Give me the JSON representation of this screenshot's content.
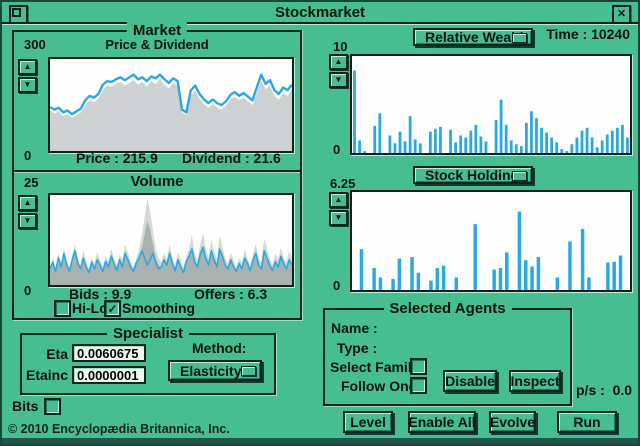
{
  "window": {
    "title": "Stockmarket"
  },
  "icons": {
    "up_arrow": "▲",
    "down_arrow": "▼",
    "close": "✕",
    "check": "✓"
  },
  "header": {
    "time_label": "Time : 10240"
  },
  "market": {
    "legend": "Market",
    "subtitle": "Price & Dividend",
    "y_max": "300",
    "y_min": "0",
    "price_label": "Price : 215.9",
    "dividend_label": "Dividend : 21.6"
  },
  "volume": {
    "title": "Volume",
    "y_max": "25",
    "y_min": "0",
    "bids_label": "Bids : 9.9",
    "offers_label": "Offers : 6.3",
    "hilo_label": "Hi-Lo",
    "smoothing_label": "Smoothing"
  },
  "specialist": {
    "legend": "Specialist",
    "eta_label": "Eta",
    "eta_value": "0.0060675",
    "etainc_label": "Etainc",
    "etainc_value": "0.0000001",
    "method_label": "Method:",
    "method_value": "Elasticity"
  },
  "bits_label": "Bits",
  "copyright": "© 2010 Encyclopædia Britannica, Inc.",
  "wealth": {
    "button_label": "Relative Wealth",
    "y_max": "10",
    "y_min": "0"
  },
  "holding": {
    "button_label": "Stock Holding",
    "y_max": "6.25",
    "y_min": "0"
  },
  "agents": {
    "legend": "Selected Agents",
    "name_label": "Name :",
    "type_label": "Type :",
    "select_family_label": "Select Family",
    "follow_one_label": "Follow One",
    "disable_label": "Disable",
    "inspect_label": "Inspect"
  },
  "ps_label": "p/s :",
  "ps_value": "0.0",
  "footer": {
    "level": "Level",
    "enable_all": "Enable All",
    "evolve": "Evolve",
    "run": "Run"
  },
  "colors": {
    "background_green": "#47bd92",
    "accent_cyan": "#29a9e1",
    "price_area_gray": "#cdd1d1",
    "frame_dark": "#16473b"
  },
  "chart_data": [
    {
      "id": "price",
      "type": "area",
      "title": "Price & Dividend",
      "ylim": [
        0,
        300
      ],
      "current_price": 215.9,
      "current_dividend": 21.6,
      "series": [
        {
          "name": "dividend-area",
          "fill": true,
          "color": "#cdd1d1",
          "values": [
            132,
            123,
            129,
            114,
            120,
            108,
            117,
            126,
            150,
            165,
            159,
            171,
            198,
            213,
            210,
            219,
            225,
            213,
            222,
            231,
            216,
            225,
            210,
            228,
            219,
            234,
            216,
            204,
            222,
            213,
            126,
            117,
            180,
            198,
            171,
            153,
            141,
            153,
            141,
            135,
            147,
            168,
            177,
            165,
            174,
            162,
            150,
            189,
            231,
            201,
            213,
            180,
            168,
            189,
            180,
            201
          ]
        },
        {
          "name": "price-line",
          "fill": false,
          "color": "#29a9e1",
          "width": 2.4,
          "values": [
            144,
            135,
            141,
            126,
            132,
            120,
            129,
            138,
            165,
            180,
            174,
            186,
            216,
            228,
            225,
            234,
            240,
            231,
            240,
            249,
            234,
            240,
            228,
            243,
            237,
            249,
            234,
            222,
            237,
            228,
            135,
            126,
            198,
            213,
            186,
            168,
            156,
            168,
            156,
            150,
            162,
            183,
            192,
            180,
            189,
            177,
            165,
            207,
            249,
            219,
            231,
            198,
            186,
            207,
            198,
            216
          ]
        }
      ]
    },
    {
      "id": "volume",
      "type": "area",
      "title": "Volume",
      "ylim": [
        0,
        25
      ],
      "bids": 9.9,
      "offers": 6.3,
      "series": [
        {
          "name": "volume-high",
          "fill": true,
          "color": "#d4d8d8",
          "values": [
            5.5,
            7.5,
            4.5,
            8.8,
            6.3,
            10,
            7,
            5,
            8.3,
            11.3,
            7.5,
            5.5,
            9.5,
            6.5,
            4.5,
            7.5,
            6,
            9,
            7,
            5,
            8,
            6.5,
            10,
            7.5,
            5.5,
            8.5,
            7,
            11.3,
            9,
            6.5,
            5,
            7.5,
            10,
            13.8,
            18.8,
            23.8,
            20.5,
            15,
            10,
            7.5,
            6.3,
            8.8,
            7,
            11.3,
            7.5,
            5.5,
            9,
            7,
            5,
            8,
            10,
            13.8,
            8.8,
            7,
            11.3,
            14.5,
            10,
            7.5,
            12.5,
            9.5,
            7,
            13.8,
            10.5,
            7.5,
            6,
            9,
            7,
            5,
            7.5,
            6,
            10,
            7.5,
            5.5,
            8.8,
            11.3,
            7.5,
            6.3,
            13,
            10,
            7.5,
            5.5,
            8.8,
            7,
            10.5,
            7.5,
            6.3,
            9.5,
            7.5
          ]
        },
        {
          "name": "volume-mid",
          "fill": true,
          "color": "#a9b2b0",
          "values": [
            4.1,
            5.6,
            3.4,
            6.6,
            4.7,
            7.5,
            5.3,
            3.8,
            6.2,
            8.5,
            5.6,
            4.1,
            7.1,
            4.9,
            3.4,
            5.6,
            4.5,
            6.8,
            5.3,
            3.8,
            6,
            4.9,
            7.5,
            5.6,
            4.1,
            6.4,
            5.3,
            8.5,
            6.8,
            4.9,
            3.8,
            5.6,
            7.5,
            10.3,
            14.1,
            17.8,
            15.4,
            11.3,
            7.5,
            5.6,
            4.7,
            6.6,
            5.3,
            8.5,
            5.6,
            4.1,
            6.8,
            5.3,
            3.8,
            6,
            7.5,
            10.3,
            6.6,
            5.3,
            8.5,
            10.9,
            7.5,
            5.6,
            9.4,
            7.1,
            5.3,
            10.3,
            7.9,
            5.6,
            4.5,
            6.8,
            5.3,
            3.8,
            5.6,
            4.5,
            7.5,
            5.6,
            4.1,
            6.6,
            8.5,
            5.6,
            4.7,
            9.8,
            7.5,
            5.6,
            4.1,
            6.6,
            5.3,
            7.9,
            5.6,
            4.7,
            7.1,
            5.6
          ]
        },
        {
          "name": "volume-line",
          "fill": false,
          "color": "#29a9e1",
          "width": 1.6,
          "values": [
            4.5,
            6.3,
            3.8,
            7.5,
            5,
            8.8,
            5.5,
            3.8,
            7,
            9.5,
            6,
            4.5,
            7.5,
            5,
            3.5,
            6.3,
            4.5,
            7,
            5.5,
            3.8,
            6.5,
            5,
            8,
            6,
            4,
            7,
            5,
            8.8,
            7,
            5,
            3.8,
            6,
            7.5,
            9.5,
            7.5,
            5.5,
            7,
            8.8,
            6.3,
            4.5,
            5,
            7,
            5.5,
            8.8,
            6,
            4,
            7,
            5,
            3.5,
            6.5,
            8,
            10,
            6.5,
            5,
            8.5,
            10.5,
            7.5,
            5.5,
            9.5,
            7,
            5,
            10,
            8,
            5.5,
            4.5,
            7,
            5,
            3.8,
            6,
            4.5,
            7.5,
            6,
            4,
            7,
            8.8,
            5.5,
            4.5,
            9.5,
            7.5,
            5.5,
            4,
            6.5,
            5,
            8,
            6,
            4.5,
            7,
            5.5
          ]
        }
      ]
    },
    {
      "id": "wealth",
      "type": "bar",
      "title": "Relative Wealth",
      "ylim": [
        0,
        10
      ],
      "color": "#29a9e1",
      "values": [
        8.5,
        1.3,
        0.2,
        0,
        2.8,
        4.1,
        0,
        1.8,
        1.0,
        2.2,
        1.2,
        3.8,
        1.4,
        1.0,
        0,
        2.2,
        2.5,
        2.7,
        0,
        2.4,
        1.1,
        1.8,
        1.6,
        2.3,
        2.9,
        1.7,
        1.2,
        0,
        3.4,
        5.5,
        2.9,
        1.3,
        0.9,
        0.7,
        3.1,
        4.3,
        3.6,
        2.6,
        2.1,
        1.6,
        1.1,
        0.4,
        0.2,
        0.9,
        1.6,
        2.3,
        2.6,
        1.6,
        0.6,
        1.3,
        1.9,
        2.3,
        2.6,
        2.9,
        1.6
      ]
    },
    {
      "id": "holding",
      "type": "bar",
      "title": "Stock Holding",
      "ylim": [
        0,
        6.25
      ],
      "color": "#29a9e1",
      "values": [
        0,
        2.6,
        0,
        1.4,
        0.8,
        0,
        0.7,
        2.0,
        0,
        2.1,
        1.1,
        0,
        0.6,
        1.4,
        1.55,
        0,
        0.8,
        0,
        0,
        4.2,
        0,
        0,
        1.3,
        1.4,
        2.4,
        0,
        5.0,
        1.9,
        1.5,
        2.1,
        0,
        0,
        0.8,
        0,
        3.1,
        0,
        3.9,
        0.8,
        0,
        0,
        1.75,
        1.8,
        2.2,
        0
      ]
    }
  ]
}
